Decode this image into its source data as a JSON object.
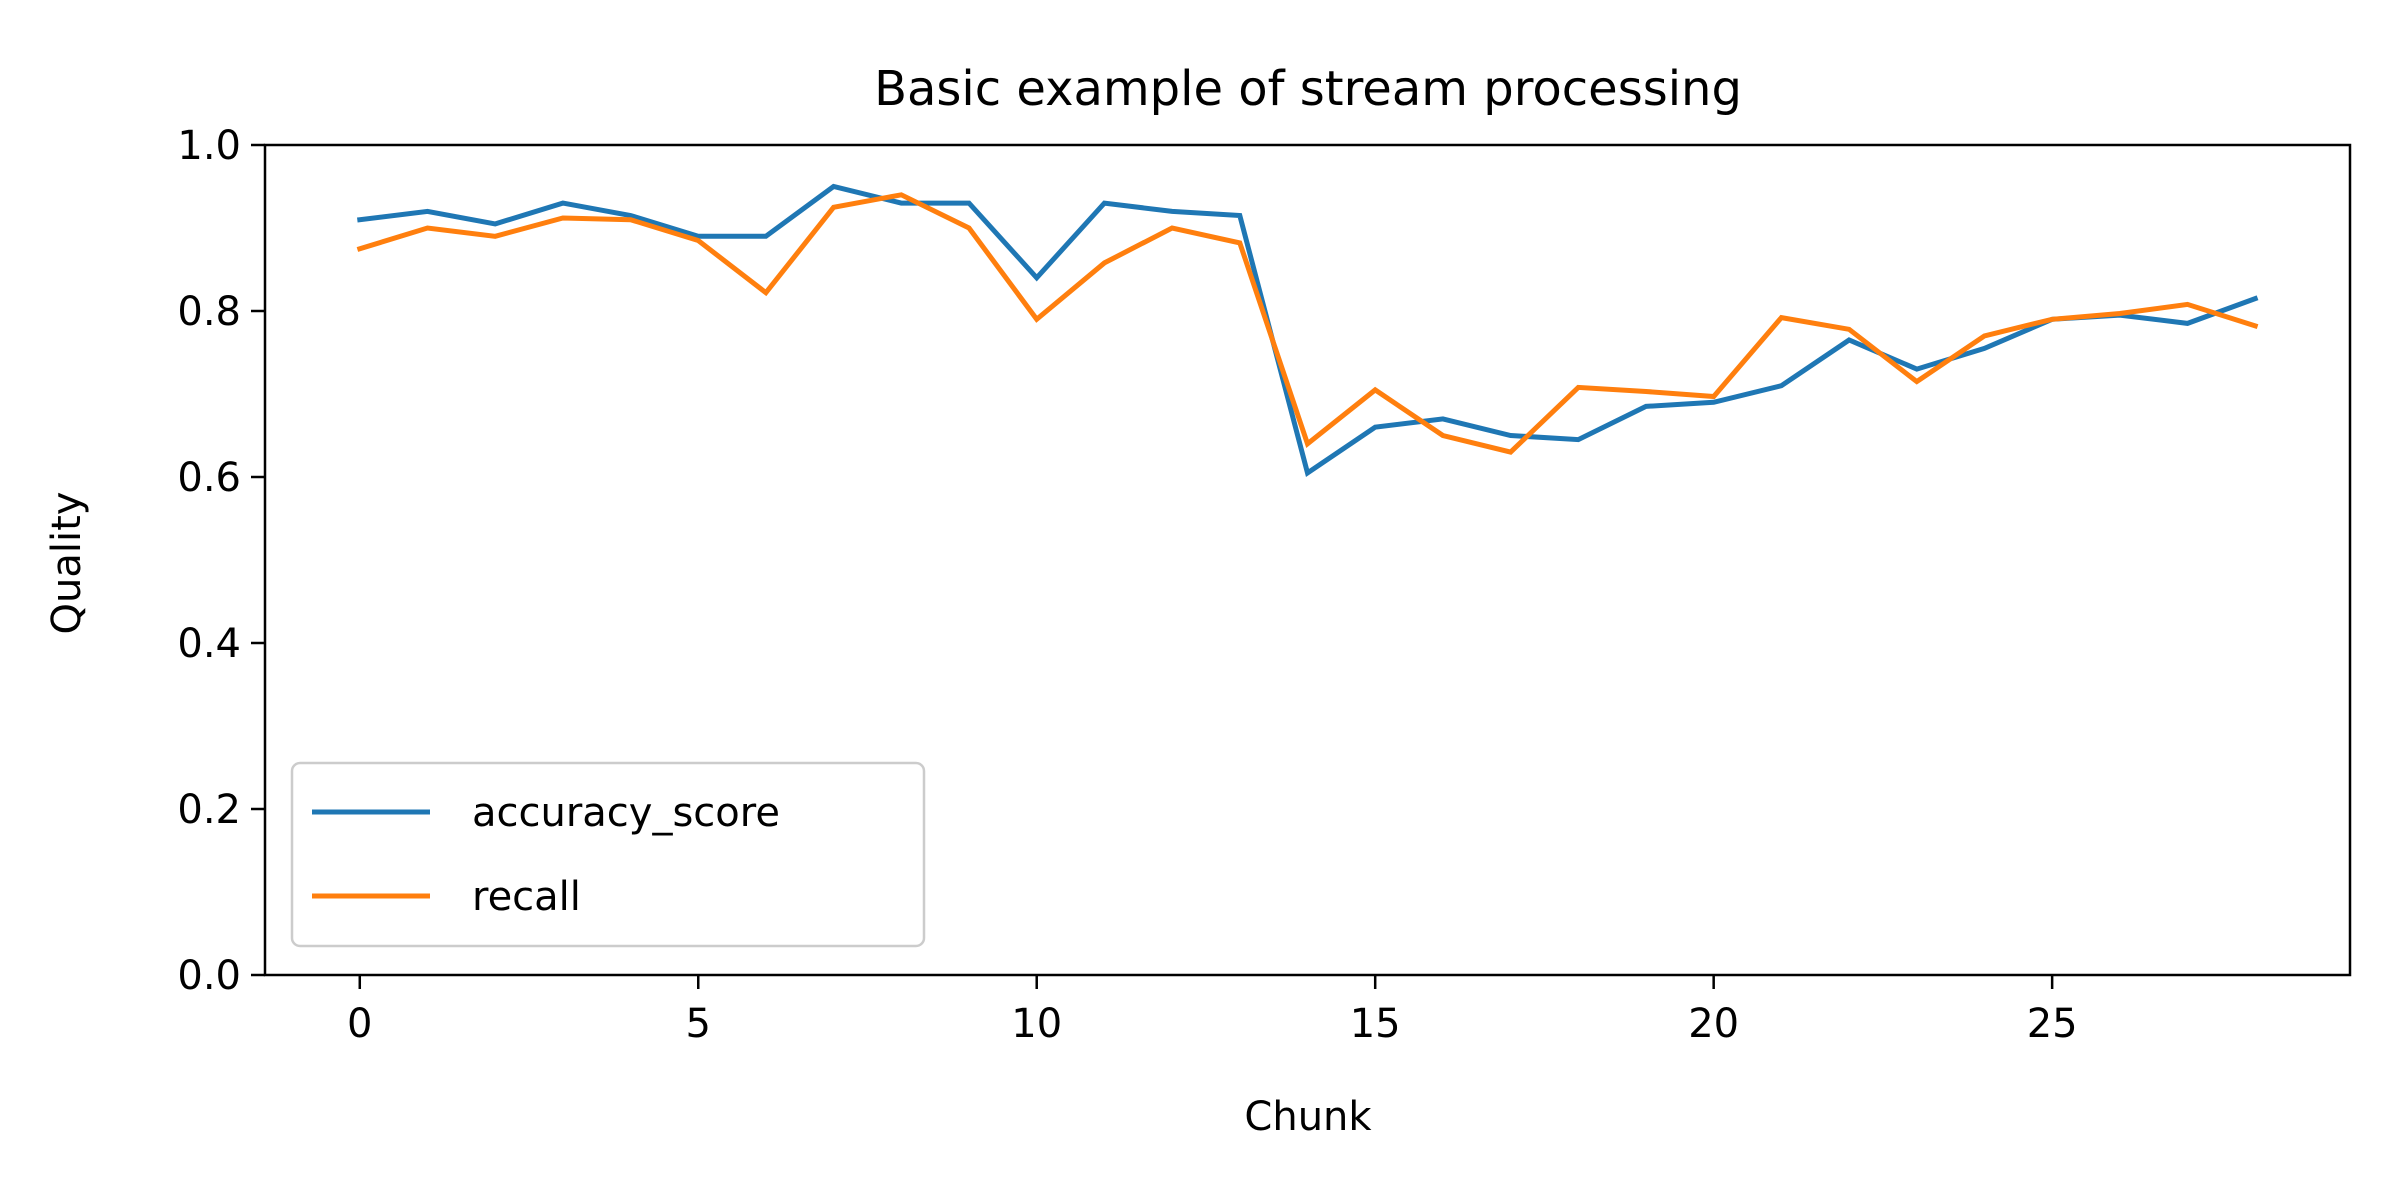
{
  "chart_data": {
    "type": "line",
    "title": "Basic example of stream processing",
    "xlabel": "Chunk",
    "ylabel": "Quality",
    "xlim": [
      -1.4,
      29.4
    ],
    "ylim": [
      0.0,
      1.0
    ],
    "xticks": [
      0,
      5,
      10,
      15,
      20,
      25
    ],
    "xtick_labels": [
      "0",
      "5",
      "10",
      "15",
      "20",
      "25"
    ],
    "yticks": [
      0.0,
      0.2,
      0.4,
      0.6,
      0.8,
      1.0
    ],
    "ytick_labels": [
      "0.0",
      "0.2",
      "0.4",
      "0.6",
      "0.8",
      "1.0"
    ],
    "grid": false,
    "legend_position": "lower-left",
    "x": [
      0,
      1,
      2,
      3,
      4,
      5,
      6,
      7,
      8,
      9,
      10,
      11,
      12,
      13,
      14,
      15,
      16,
      17,
      18,
      19,
      20,
      21,
      22,
      23,
      24,
      25,
      26,
      27,
      28
    ],
    "series": [
      {
        "name": "accuracy_score",
        "color": "#1f77b4",
        "values": [
          0.91,
          0.92,
          0.905,
          0.93,
          0.915,
          0.89,
          0.89,
          0.95,
          0.93,
          0.93,
          0.84,
          0.93,
          0.92,
          0.915,
          0.605,
          0.66,
          0.67,
          0.65,
          0.645,
          0.685,
          0.69,
          0.71,
          0.765,
          0.73,
          0.755,
          0.79,
          0.795,
          0.785,
          0.815
        ]
      },
      {
        "name": "recall",
        "color": "#ff7f0e",
        "values": [
          0.875,
          0.9,
          0.89,
          0.912,
          0.91,
          0.885,
          0.822,
          0.925,
          0.94,
          0.9,
          0.79,
          0.858,
          0.9,
          0.882,
          0.64,
          0.705,
          0.65,
          0.63,
          0.708,
          0.703,
          0.697,
          0.792,
          0.778,
          0.715,
          0.77,
          0.79,
          0.797,
          0.808,
          0.782
        ]
      }
    ]
  }
}
